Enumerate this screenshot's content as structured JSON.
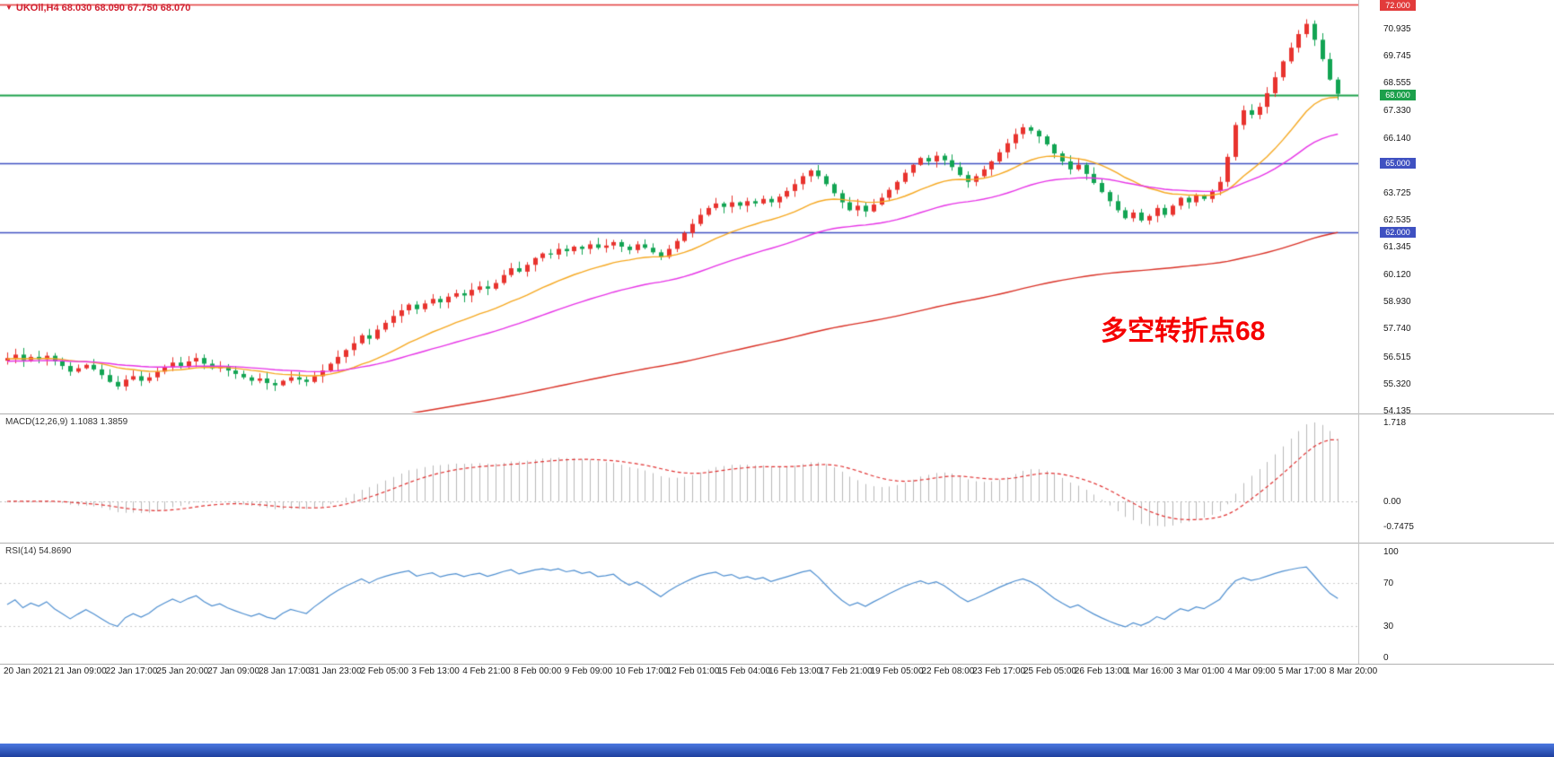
{
  "icons": {
    "symbol_dropdown": "▼"
  },
  "header": {
    "text": "UKOil,H4 68.030 68.090 67.750 68.070"
  },
  "annotation": {
    "text": "多空转折点68",
    "color": "#f50000"
  },
  "colors": {
    "candle_up": "#e8332e",
    "candle_down": "#12a453",
    "macd_hist": "#b9b9b9",
    "macd_signal": "#e03131",
    "rsi_line": "#4f8fd0",
    "separator": "#b0b0b0",
    "bottom_bar": "#2d59c9",
    "header_text": "#d01f2f"
  },
  "chart_data": {
    "type": "candlestick",
    "symbol": "UKOil",
    "timeframe": "H4",
    "ohlc": {
      "open": 68.03,
      "high": 68.09,
      "low": 67.75,
      "close": 68.07
    },
    "price_ylim": [
      54.05,
      72.2
    ],
    "closes": [
      56.45,
      56.6,
      56.35,
      56.5,
      56.4,
      56.55,
      56.3,
      56.1,
      55.85,
      56.0,
      56.15,
      55.95,
      55.7,
      55.4,
      55.2,
      55.5,
      55.65,
      55.45,
      55.6,
      55.85,
      56.05,
      56.25,
      56.1,
      56.3,
      56.45,
      56.2,
      56.0,
      56.1,
      55.9,
      55.75,
      55.6,
      55.45,
      55.55,
      55.35,
      55.25,
      55.45,
      55.6,
      55.5,
      55.4,
      55.65,
      55.9,
      56.2,
      56.5,
      56.8,
      57.1,
      57.45,
      57.3,
      57.7,
      58.0,
      58.3,
      58.55,
      58.8,
      58.6,
      58.85,
      59.05,
      58.9,
      59.15,
      59.3,
      59.2,
      59.45,
      59.6,
      59.5,
      59.75,
      60.1,
      60.4,
      60.25,
      60.55,
      60.85,
      61.05,
      61.0,
      61.25,
      61.15,
      61.35,
      61.25,
      61.45,
      61.3,
      61.4,
      61.55,
      61.35,
      61.2,
      61.45,
      61.3,
      61.1,
      60.9,
      61.25,
      61.6,
      61.95,
      62.35,
      62.75,
      63.05,
      63.25,
      63.1,
      63.3,
      63.15,
      63.35,
      63.25,
      63.45,
      63.3,
      63.55,
      63.8,
      64.1,
      64.45,
      64.7,
      64.45,
      64.1,
      63.7,
      63.3,
      62.95,
      63.15,
      62.9,
      63.2,
      63.5,
      63.85,
      64.2,
      64.6,
      64.95,
      65.25,
      65.1,
      65.35,
      65.15,
      64.85,
      64.5,
      64.2,
      64.45,
      64.75,
      65.1,
      65.5,
      65.9,
      66.3,
      66.6,
      66.45,
      66.2,
      65.85,
      65.45,
      65.1,
      64.75,
      64.95,
      64.55,
      64.15,
      63.75,
      63.35,
      62.95,
      62.6,
      62.85,
      62.5,
      62.7,
      63.05,
      62.75,
      63.15,
      63.5,
      63.3,
      63.6,
      63.45,
      63.8,
      64.2,
      65.3,
      66.7,
      67.35,
      67.15,
      67.5,
      68.1,
      68.8,
      69.5,
      70.1,
      70.7,
      71.15,
      70.45,
      69.6,
      68.7,
      68.07
    ],
    "date_labels": [
      "20 Jan 2021",
      "21 Jan 09:00",
      "22 Jan 17:00",
      "25 Jan 20:00",
      "27 Jan 09:00",
      "28 Jan 17:00",
      "31 Jan 23:00",
      "2 Feb 05:00",
      "3 Feb 13:00",
      "4 Feb 21:00",
      "8 Feb 00:00",
      "9 Feb 09:00",
      "10 Feb 17:00",
      "12 Feb 01:00",
      "15 Feb 04:00",
      "16 Feb 13:00",
      "17 Feb 21:00",
      "19 Feb 05:00",
      "22 Feb 08:00",
      "23 Feb 17:00",
      "25 Feb 05:00",
      "26 Feb 13:00",
      "1 Mar 16:00",
      "3 Mar 01:00",
      "4 Mar 09:00",
      "5 Mar 17:00",
      "8 Mar 20:00"
    ],
    "price_axis": {
      "ticks": [
        {
          "t": "70.935",
          "v": 70.935
        },
        {
          "t": "69.745",
          "v": 69.745
        },
        {
          "t": "68.555",
          "v": 68.555
        },
        {
          "t": "67.330",
          "v": 67.33
        },
        {
          "t": "66.140",
          "v": 66.14
        },
        {
          "t": "63.725",
          "v": 63.725
        },
        {
          "t": "62.535",
          "v": 62.535
        },
        {
          "t": "61.345",
          "v": 61.345
        },
        {
          "t": "60.120",
          "v": 60.12
        },
        {
          "t": "58.930",
          "v": 58.93
        },
        {
          "t": "57.740",
          "v": 57.74
        },
        {
          "t": "56.515",
          "v": 56.515
        },
        {
          "t": "55.320",
          "v": 55.32
        },
        {
          "t": "54.135",
          "v": 54.135
        }
      ],
      "lines": [
        {
          "badge": "72.000",
          "value": 72.0,
          "color": "#e23b3b",
          "width": 1.5
        },
        {
          "badge": "68.000",
          "value": 68.0,
          "color": "#1ca04b",
          "width": 2
        },
        {
          "badge": "65.000",
          "value": 65.0,
          "color": "#3f51c1",
          "width": 1.5
        },
        {
          "badge": "62.000",
          "value": 62.0,
          "color": "#3f51c1",
          "width": 1.5
        }
      ]
    },
    "moving_averages": [
      {
        "name": "ma-fast",
        "color": "#f5a821",
        "alpha": 0.1,
        "seed": 56.4
      },
      {
        "name": "ma-mid",
        "color": "#e633e6",
        "alpha": 0.045,
        "seed": 56.3
      },
      {
        "name": "ma-slow",
        "color": "#d93025",
        "alpha": 0.012,
        "seed": 52.0
      }
    ],
    "indicators": {
      "macd": {
        "label": "MACD(12,26,9) 1.1083 1.3859",
        "params": [
          12,
          26,
          9
        ],
        "values_text": [
          "1.1083",
          "1.3859"
        ],
        "axis_ticks": [
          "1.718",
          "0.00",
          "-0.7475"
        ]
      },
      "rsi": {
        "label": "RSI(14) 54.8690",
        "period": 14,
        "value_text": "54.8690",
        "levels": [
          70,
          30
        ],
        "axis_ticks": [
          {
            "t": "100",
            "v": 100
          },
          {
            "t": "70",
            "v": 70
          },
          {
            "t": "30",
            "v": 30
          },
          {
            "t": "0",
            "v": 0
          }
        ]
      }
    }
  }
}
